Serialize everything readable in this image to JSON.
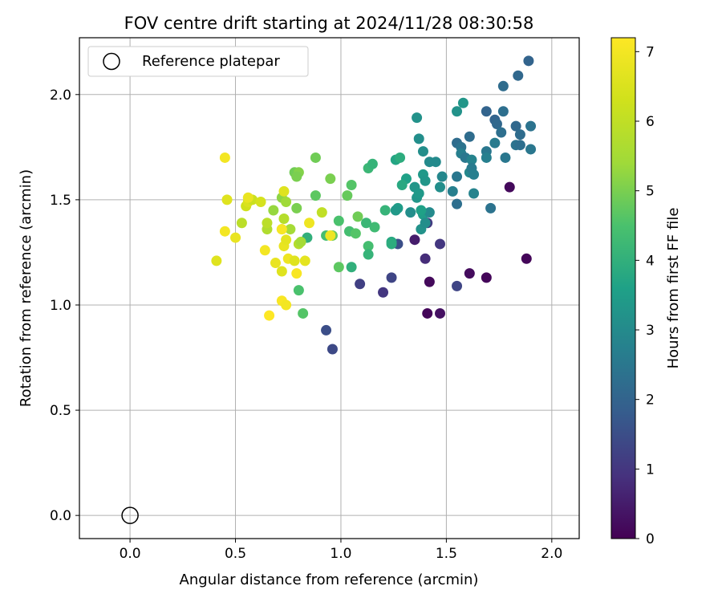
{
  "chart_data": {
    "type": "scatter",
    "title": "FOV centre drift starting at 2024/11/28 08:30:58",
    "xlabel": "Angular distance from reference (arcmin)",
    "ylabel": "Rotation from reference (arcmin)",
    "xlim": [
      -0.24,
      2.13
    ],
    "ylim": [
      -0.11,
      2.27
    ],
    "xticks": [
      0.0,
      0.5,
      1.0,
      1.5,
      2.0
    ],
    "yticks": [
      0.0,
      0.5,
      1.0,
      1.5,
      2.0
    ],
    "xtick_labels": [
      "0.0",
      "0.5",
      "1.0",
      "1.5",
      "2.0"
    ],
    "ytick_labels": [
      "0.0",
      "0.5",
      "1.0",
      "1.5",
      "2.0"
    ],
    "grid": true,
    "colormap": "viridis",
    "colorbar": {
      "label": "Hours from first FF file",
      "range": [
        0,
        7.2
      ],
      "ticks": [
        0,
        1,
        2,
        3,
        4,
        5,
        6,
        7
      ],
      "tick_labels": [
        "0",
        "1",
        "2",
        "3",
        "4",
        "5",
        "6",
        "7"
      ]
    },
    "legend": {
      "placement": "top-left",
      "entries": [
        "Reference platepar"
      ]
    },
    "reference_point": {
      "x": 0.0,
      "y": 0.0
    },
    "points": [
      {
        "x": 1.41,
        "y": 0.96,
        "c": 0.1
      },
      {
        "x": 1.47,
        "y": 0.96,
        "c": 0.3
      },
      {
        "x": 1.42,
        "y": 1.11,
        "c": 0.15
      },
      {
        "x": 1.61,
        "y": 1.15,
        "c": 0.2
      },
      {
        "x": 1.69,
        "y": 1.13,
        "c": 0.1
      },
      {
        "x": 1.8,
        "y": 1.56,
        "c": 0.15
      },
      {
        "x": 1.88,
        "y": 1.22,
        "c": 0.1
      },
      {
        "x": 1.35,
        "y": 1.31,
        "c": 0.5
      },
      {
        "x": 1.4,
        "y": 1.22,
        "c": 0.8
      },
      {
        "x": 1.47,
        "y": 1.29,
        "c": 1.0
      },
      {
        "x": 1.55,
        "y": 1.09,
        "c": 1.3
      },
      {
        "x": 1.41,
        "y": 1.39,
        "c": 1.1
      },
      {
        "x": 1.24,
        "y": 1.13,
        "c": 1.3
      },
      {
        "x": 1.2,
        "y": 1.06,
        "c": 1.0
      },
      {
        "x": 1.09,
        "y": 1.1,
        "c": 1.2
      },
      {
        "x": 0.93,
        "y": 0.88,
        "c": 1.5
      },
      {
        "x": 0.96,
        "y": 0.79,
        "c": 1.4
      },
      {
        "x": 1.27,
        "y": 1.29,
        "c": 1.5
      },
      {
        "x": 1.89,
        "y": 2.16,
        "c": 2.0
      },
      {
        "x": 1.84,
        "y": 2.09,
        "c": 2.1
      },
      {
        "x": 1.77,
        "y": 2.04,
        "c": 2.2
      },
      {
        "x": 1.69,
        "y": 1.92,
        "c": 2.0
      },
      {
        "x": 1.77,
        "y": 1.92,
        "c": 2.3
      },
      {
        "x": 1.73,
        "y": 1.88,
        "c": 2.0
      },
      {
        "x": 1.74,
        "y": 1.86,
        "c": 2.1
      },
      {
        "x": 1.83,
        "y": 1.85,
        "c": 2.1
      },
      {
        "x": 1.9,
        "y": 1.85,
        "c": 2.4
      },
      {
        "x": 1.85,
        "y": 1.81,
        "c": 2.2
      },
      {
        "x": 1.76,
        "y": 1.82,
        "c": 2.3
      },
      {
        "x": 1.61,
        "y": 1.8,
        "c": 2.2
      },
      {
        "x": 1.55,
        "y": 1.77,
        "c": 2.2
      },
      {
        "x": 1.57,
        "y": 1.75,
        "c": 2.4
      },
      {
        "x": 1.73,
        "y": 1.77,
        "c": 2.6
      },
      {
        "x": 1.69,
        "y": 1.73,
        "c": 2.5
      },
      {
        "x": 1.83,
        "y": 1.76,
        "c": 2.4
      },
      {
        "x": 1.85,
        "y": 1.76,
        "c": 2.3
      },
      {
        "x": 1.9,
        "y": 1.74,
        "c": 2.5
      },
      {
        "x": 1.78,
        "y": 1.7,
        "c": 2.5
      },
      {
        "x": 1.57,
        "y": 1.72,
        "c": 2.7
      },
      {
        "x": 1.59,
        "y": 1.7,
        "c": 2.5
      },
      {
        "x": 1.62,
        "y": 1.69,
        "c": 2.8
      },
      {
        "x": 1.61,
        "y": 1.63,
        "c": 2.9
      },
      {
        "x": 1.62,
        "y": 1.65,
        "c": 2.6
      },
      {
        "x": 1.69,
        "y": 1.7,
        "c": 2.7
      },
      {
        "x": 1.55,
        "y": 1.61,
        "c": 2.5
      },
      {
        "x": 1.63,
        "y": 1.62,
        "c": 2.7
      },
      {
        "x": 1.63,
        "y": 1.53,
        "c": 2.8
      },
      {
        "x": 1.55,
        "y": 1.48,
        "c": 2.3
      },
      {
        "x": 1.71,
        "y": 1.46,
        "c": 2.4
      },
      {
        "x": 1.53,
        "y": 1.54,
        "c": 2.7
      },
      {
        "x": 1.48,
        "y": 1.61,
        "c": 2.9
      },
      {
        "x": 1.47,
        "y": 1.56,
        "c": 3.1
      },
      {
        "x": 1.42,
        "y": 1.68,
        "c": 3.0
      },
      {
        "x": 1.39,
        "y": 1.73,
        "c": 3.1
      },
      {
        "x": 1.37,
        "y": 1.79,
        "c": 3.1
      },
      {
        "x": 1.36,
        "y": 1.89,
        "c": 3.2
      },
      {
        "x": 1.55,
        "y": 1.92,
        "c": 3.2
      },
      {
        "x": 1.58,
        "y": 1.96,
        "c": 3.3
      },
      {
        "x": 1.39,
        "y": 1.62,
        "c": 3.4
      },
      {
        "x": 1.4,
        "y": 1.59,
        "c": 3.3
      },
      {
        "x": 1.45,
        "y": 1.68,
        "c": 3.0
      },
      {
        "x": 1.35,
        "y": 1.56,
        "c": 3.3
      },
      {
        "x": 1.36,
        "y": 1.51,
        "c": 3.3
      },
      {
        "x": 1.37,
        "y": 1.53,
        "c": 3.4
      },
      {
        "x": 1.39,
        "y": 1.43,
        "c": 3.5
      },
      {
        "x": 1.42,
        "y": 1.44,
        "c": 3.0
      },
      {
        "x": 1.38,
        "y": 1.36,
        "c": 3.2
      },
      {
        "x": 1.4,
        "y": 1.39,
        "c": 3.1
      },
      {
        "x": 1.33,
        "y": 1.44,
        "c": 3.1
      },
      {
        "x": 1.31,
        "y": 1.6,
        "c": 3.6
      },
      {
        "x": 1.29,
        "y": 1.57,
        "c": 3.8
      },
      {
        "x": 1.26,
        "y": 1.69,
        "c": 3.7
      },
      {
        "x": 1.28,
        "y": 1.7,
        "c": 3.9
      },
      {
        "x": 1.27,
        "y": 1.46,
        "c": 3.5
      },
      {
        "x": 1.26,
        "y": 1.45,
        "c": 3.4
      },
      {
        "x": 1.38,
        "y": 1.45,
        "c": 3.6
      },
      {
        "x": 1.24,
        "y": 1.3,
        "c": 3.8
      },
      {
        "x": 1.24,
        "y": 1.29,
        "c": 3.9
      },
      {
        "x": 1.21,
        "y": 1.45,
        "c": 4.1
      },
      {
        "x": 1.13,
        "y": 1.65,
        "c": 4.2
      },
      {
        "x": 1.15,
        "y": 1.67,
        "c": 4.1
      },
      {
        "x": 1.16,
        "y": 1.37,
        "c": 4.3
      },
      {
        "x": 1.12,
        "y": 1.39,
        "c": 4.2
      },
      {
        "x": 1.13,
        "y": 1.28,
        "c": 4.4
      },
      {
        "x": 1.13,
        "y": 1.24,
        "c": 4.1
      },
      {
        "x": 1.05,
        "y": 1.57,
        "c": 4.6
      },
      {
        "x": 1.05,
        "y": 1.18,
        "c": 4.0
      },
      {
        "x": 1.04,
        "y": 1.35,
        "c": 4.4
      },
      {
        "x": 1.07,
        "y": 1.34,
        "c": 4.6
      },
      {
        "x": 0.99,
        "y": 1.18,
        "c": 4.7
      },
      {
        "x": 1.03,
        "y": 1.52,
        "c": 4.8
      },
      {
        "x": 0.95,
        "y": 1.6,
        "c": 5.0
      },
      {
        "x": 0.88,
        "y": 1.7,
        "c": 4.9
      },
      {
        "x": 0.88,
        "y": 1.52,
        "c": 4.7
      },
      {
        "x": 0.99,
        "y": 1.4,
        "c": 4.5
      },
      {
        "x": 0.93,
        "y": 1.33,
        "c": 4.4
      },
      {
        "x": 0.96,
        "y": 1.33,
        "c": 4.8
      },
      {
        "x": 0.84,
        "y": 1.32,
        "c": 4.0
      },
      {
        "x": 0.8,
        "y": 1.07,
        "c": 4.5
      },
      {
        "x": 0.82,
        "y": 0.96,
        "c": 4.6
      },
      {
        "x": 1.08,
        "y": 1.42,
        "c": 4.9
      },
      {
        "x": 0.78,
        "y": 1.63,
        "c": 4.9
      },
      {
        "x": 0.8,
        "y": 1.63,
        "c": 5.1
      },
      {
        "x": 0.79,
        "y": 1.61,
        "c": 5.0
      },
      {
        "x": 0.79,
        "y": 1.46,
        "c": 5.0
      },
      {
        "x": 0.72,
        "y": 1.51,
        "c": 5.2
      },
      {
        "x": 0.74,
        "y": 1.49,
        "c": 5.4
      },
      {
        "x": 0.68,
        "y": 1.45,
        "c": 5.3
      },
      {
        "x": 0.72,
        "y": 1.36,
        "c": 5.6
      },
      {
        "x": 0.76,
        "y": 1.36,
        "c": 5.5
      },
      {
        "x": 0.65,
        "y": 1.36,
        "c": 5.7
      },
      {
        "x": 0.73,
        "y": 1.41,
        "c": 5.8
      },
      {
        "x": 0.65,
        "y": 1.39,
        "c": 5.9
      },
      {
        "x": 0.8,
        "y": 1.29,
        "c": 5.8
      },
      {
        "x": 0.81,
        "y": 1.3,
        "c": 5.5
      },
      {
        "x": 0.91,
        "y": 1.44,
        "c": 6.0
      },
      {
        "x": 0.53,
        "y": 1.39,
        "c": 5.9
      },
      {
        "x": 0.55,
        "y": 1.47,
        "c": 6.3
      },
      {
        "x": 0.56,
        "y": 1.49,
        "c": 6.5
      },
      {
        "x": 0.58,
        "y": 1.5,
        "c": 6.2
      },
      {
        "x": 0.62,
        "y": 1.49,
        "c": 6.4
      },
      {
        "x": 0.56,
        "y": 1.51,
        "c": 6.8
      },
      {
        "x": 0.46,
        "y": 1.5,
        "c": 6.6
      },
      {
        "x": 0.45,
        "y": 1.7,
        "c": 7.0
      },
      {
        "x": 0.45,
        "y": 1.35,
        "c": 7.0
      },
      {
        "x": 0.5,
        "y": 1.32,
        "c": 6.8
      },
      {
        "x": 0.41,
        "y": 1.21,
        "c": 6.6
      },
      {
        "x": 0.64,
        "y": 1.26,
        "c": 7.0
      },
      {
        "x": 0.69,
        "y": 1.2,
        "c": 6.8
      },
      {
        "x": 0.72,
        "y": 1.16,
        "c": 6.6
      },
      {
        "x": 0.75,
        "y": 1.22,
        "c": 6.9
      },
      {
        "x": 0.78,
        "y": 1.21,
        "c": 6.6
      },
      {
        "x": 0.83,
        "y": 1.21,
        "c": 6.7
      },
      {
        "x": 0.79,
        "y": 1.15,
        "c": 7.1
      },
      {
        "x": 0.73,
        "y": 1.28,
        "c": 6.8
      },
      {
        "x": 0.74,
        "y": 1.31,
        "c": 6.7
      },
      {
        "x": 0.85,
        "y": 1.39,
        "c": 6.9
      },
      {
        "x": 0.73,
        "y": 1.54,
        "c": 6.6
      },
      {
        "x": 0.72,
        "y": 1.02,
        "c": 7.1
      },
      {
        "x": 0.74,
        "y": 1.0,
        "c": 7.0
      },
      {
        "x": 0.66,
        "y": 0.95,
        "c": 7.2
      },
      {
        "x": 0.72,
        "y": 1.36,
        "c": 7.1
      },
      {
        "x": 0.95,
        "y": 1.33,
        "c": 6.9
      }
    ]
  }
}
